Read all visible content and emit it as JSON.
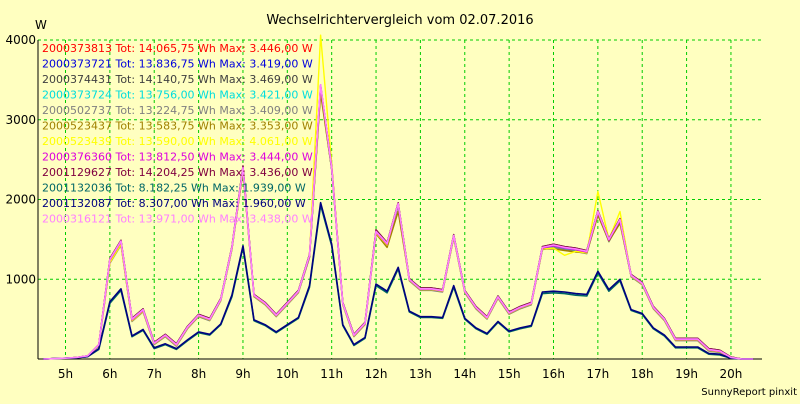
{
  "chart_data": {
    "type": "line",
    "title": "Wechselrichtervergleich vom 02.07.2016",
    "ylabel": "W",
    "xlabel": "",
    "footer": "SunnyReport pinxit",
    "ylim": [
      0,
      4000
    ],
    "xlim": [
      4.38,
      20.7
    ],
    "yticks": [
      1000,
      2000,
      3000,
      4000
    ],
    "xticks": [
      {
        "value": 5,
        "label": "5h"
      },
      {
        "value": 6,
        "label": "6h"
      },
      {
        "value": 7,
        "label": "7h"
      },
      {
        "value": 8,
        "label": "8h"
      },
      {
        "value": 9,
        "label": "9h"
      },
      {
        "value": 10,
        "label": "10h"
      },
      {
        "value": 11,
        "label": "11h"
      },
      {
        "value": 12,
        "label": "12h"
      },
      {
        "value": 13,
        "label": "13h"
      },
      {
        "value": 14,
        "label": "14h"
      },
      {
        "value": 15,
        "label": "15h"
      },
      {
        "value": 16,
        "label": "16h"
      },
      {
        "value": 17,
        "label": "17h"
      },
      {
        "value": 18,
        "label": "18h"
      },
      {
        "value": 19,
        "label": "19h"
      },
      {
        "value": 20,
        "label": "20h"
      }
    ],
    "grid": true,
    "legend_position": "top-left",
    "colors": {
      "background": "#ffffc0",
      "grid": "#00cc00",
      "axis": "#000000"
    },
    "x": [
      4.5,
      5.0,
      5.25,
      5.5,
      5.75,
      6.0,
      6.25,
      6.5,
      6.75,
      7.0,
      7.25,
      7.5,
      7.75,
      8.0,
      8.25,
      8.5,
      8.75,
      9.0,
      9.25,
      9.5,
      9.75,
      10.0,
      10.25,
      10.5,
      10.75,
      11.0,
      11.25,
      11.5,
      11.75,
      12.0,
      12.25,
      12.5,
      12.75,
      13.0,
      13.25,
      13.5,
      13.75,
      14.0,
      14.25,
      14.5,
      14.75,
      15.0,
      15.25,
      15.5,
      15.75,
      16.0,
      16.25,
      16.5,
      16.75,
      17.0,
      17.25,
      17.5,
      17.75,
      18.0,
      18.25,
      18.5,
      18.75,
      19.0,
      19.25,
      19.5,
      19.75,
      20.0,
      20.25,
      20.5
    ],
    "series": [
      {
        "name": "2000373813 Tot: 14.065,75 Wh Max: 3.446,00 W",
        "color": "#ff0000",
        "values": [
          0,
          10,
          20,
          40,
          180,
          1250,
          1480,
          500,
          620,
          200,
          300,
          180,
          400,
          550,
          500,
          750,
          1400,
          2400,
          800,
          700,
          550,
          700,
          850,
          1300,
          3400,
          2400,
          700,
          300,
          450,
          1600,
          1450,
          1950,
          1000,
          880,
          880,
          860,
          1550,
          850,
          650,
          520,
          780,
          580,
          650,
          700,
          1400,
          1430,
          1400,
          1380,
          1350,
          1850,
          1500,
          1750,
          1050,
          950,
          650,
          500,
          250,
          250,
          250,
          120,
          100,
          20,
          0,
          0
        ]
      },
      {
        "name": "2000373721 Tot: 13.836,75 Wh Max: 3.419,00 W",
        "color": "#0000dd",
        "values": [
          0,
          10,
          20,
          40,
          170,
          1230,
          1460,
          480,
          600,
          190,
          290,
          170,
          390,
          540,
          490,
          740,
          1380,
          2380,
          790,
          690,
          540,
          690,
          840,
          1280,
          3380,
          2380,
          690,
          290,
          440,
          1580,
          1430,
          1930,
          990,
          870,
          870,
          850,
          1530,
          840,
          640,
          510,
          770,
          570,
          640,
          690,
          1380,
          1410,
          1380,
          1360,
          1330,
          1830,
          1480,
          1730,
          1040,
          940,
          640,
          490,
          240,
          240,
          240,
          110,
          90,
          15,
          0,
          0
        ]
      },
      {
        "name": "2000374431 Tot: 14.140,75 Wh Max: 3.469,00 W",
        "color": "#404040",
        "values": [
          0,
          10,
          20,
          40,
          180,
          1260,
          1490,
          510,
          630,
          210,
          310,
          190,
          410,
          560,
          510,
          760,
          1410,
          2420,
          810,
          710,
          560,
          710,
          860,
          1310,
          3420,
          2420,
          710,
          310,
          460,
          1620,
          1460,
          1960,
          1010,
          890,
          890,
          870,
          1560,
          860,
          660,
          530,
          790,
          590,
          660,
          710,
          1410,
          1440,
          1410,
          1390,
          1360,
          1860,
          1510,
          1760,
          1060,
          960,
          660,
          510,
          260,
          260,
          260,
          130,
          110,
          25,
          0,
          0
        ]
      },
      {
        "name": "2000373724 Tot: 13.756,00 Wh Max: 3.421,00 W",
        "color": "#00dddd",
        "values": [
          0,
          10,
          20,
          40,
          170,
          1220,
          1450,
          480,
          600,
          190,
          290,
          170,
          390,
          540,
          490,
          740,
          1380,
          2380,
          790,
          690,
          540,
          690,
          840,
          1280,
          3380,
          2380,
          690,
          290,
          440,
          1580,
          1430,
          1930,
          990,
          870,
          870,
          850,
          1530,
          840,
          640,
          510,
          770,
          570,
          640,
          690,
          1380,
          1410,
          1380,
          1360,
          1330,
          1830,
          1480,
          1730,
          1040,
          940,
          640,
          490,
          240,
          240,
          240,
          110,
          90,
          15,
          0,
          0
        ]
      },
      {
        "name": "2000502737 Tot: 13.224,75 Wh Max: 3.409,00 W",
        "color": "#808080",
        "values": [
          0,
          10,
          20,
          40,
          160,
          1200,
          1430,
          470,
          590,
          180,
          280,
          160,
          380,
          530,
          480,
          730,
          1370,
          2360,
          780,
          680,
          530,
          680,
          830,
          1270,
          3370,
          2370,
          680,
          280,
          430,
          1570,
          1420,
          1920,
          980,
          860,
          860,
          840,
          1520,
          830,
          630,
          500,
          760,
          560,
          630,
          680,
          1370,
          1400,
          1370,
          1350,
          1320,
          1820,
          1470,
          1720,
          1030,
          930,
          630,
          480,
          230,
          230,
          230,
          100,
          80,
          10,
          0,
          0
        ]
      },
      {
        "name": "2000523437 Tot: 13.583,75 Wh Max: 3.353,00 W",
        "color": "#a08000",
        "values": [
          0,
          10,
          20,
          40,
          170,
          1210,
          1440,
          480,
          600,
          190,
          290,
          170,
          390,
          540,
          490,
          740,
          1380,
          2350,
          790,
          690,
          540,
          690,
          840,
          1280,
          3330,
          2380,
          690,
          290,
          440,
          1570,
          1400,
          1850,
          990,
          870,
          870,
          850,
          1530,
          840,
          640,
          510,
          770,
          570,
          640,
          690,
          1380,
          1380,
          1360,
          1340,
          1330,
          1800,
          1480,
          1700,
          1040,
          940,
          640,
          490,
          240,
          240,
          240,
          110,
          90,
          15,
          0,
          0
        ]
      },
      {
        "name": "2000523439 Tot: 13.590,00 Wh Max: 4.061,00 W",
        "color": "#ffff00",
        "values": [
          0,
          10,
          20,
          40,
          170,
          1210,
          1440,
          480,
          600,
          190,
          290,
          170,
          390,
          540,
          490,
          740,
          1380,
          2380,
          790,
          690,
          540,
          690,
          840,
          1300,
          4060,
          2450,
          690,
          290,
          440,
          1580,
          1430,
          1950,
          990,
          870,
          870,
          850,
          1530,
          840,
          640,
          510,
          770,
          570,
          640,
          690,
          1380,
          1390,
          1300,
          1350,
          1330,
          2100,
          1500,
          1850,
          1040,
          940,
          640,
          490,
          240,
          240,
          240,
          110,
          90,
          15,
          0,
          0
        ]
      },
      {
        "name": "2000376360 Tot: 13.812,50 Wh Max: 3.444,00 W",
        "color": "#dd00dd",
        "values": [
          0,
          10,
          20,
          40,
          175,
          1240,
          1470,
          490,
          610,
          195,
          295,
          175,
          395,
          545,
          495,
          745,
          1390,
          2390,
          795,
          695,
          545,
          695,
          845,
          1290,
          3440,
          2390,
          695,
          295,
          445,
          1590,
          1440,
          1940,
          995,
          875,
          875,
          855,
          1540,
          845,
          645,
          515,
          775,
          575,
          645,
          695,
          1390,
          1420,
          1390,
          1370,
          1340,
          1840,
          1490,
          1740,
          1045,
          945,
          645,
          495,
          245,
          245,
          245,
          115,
          95,
          18,
          0,
          0
        ]
      },
      {
        "name": "2001129627 Tot: 14.204,25 Wh Max: 3.436,00 W",
        "color": "#800040",
        "values": [
          0,
          10,
          20,
          40,
          180,
          1260,
          1490,
          510,
          630,
          210,
          310,
          190,
          410,
          560,
          510,
          760,
          1410,
          2420,
          810,
          710,
          560,
          710,
          860,
          1310,
          3430,
          2420,
          710,
          310,
          460,
          1620,
          1460,
          1960,
          1010,
          890,
          890,
          870,
          1560,
          860,
          660,
          530,
          790,
          590,
          660,
          710,
          1410,
          1440,
          1410,
          1390,
          1360,
          1860,
          1510,
          1760,
          1060,
          960,
          660,
          510,
          260,
          260,
          260,
          130,
          110,
          25,
          0,
          0
        ]
      },
      {
        "name": "2001132036 Tot: 8.182,25 Wh Max: 1.939,00 W",
        "color": "#006666",
        "values": [
          0,
          10,
          15,
          30,
          120,
          700,
          860,
          280,
          360,
          130,
          180,
          120,
          230,
          330,
          300,
          430,
          780,
          1400,
          480,
          420,
          330,
          420,
          510,
          900,
          1930,
          1420,
          420,
          170,
          260,
          920,
          830,
          1130,
          590,
          520,
          520,
          510,
          900,
          500,
          380,
          310,
          460,
          340,
          380,
          410,
          820,
          830,
          820,
          800,
          790,
          1080,
          850,
          980,
          610,
          560,
          380,
          290,
          140,
          140,
          140,
          60,
          50,
          10,
          0,
          0
        ]
      },
      {
        "name": "2001132087 Tot: 8.307,00 Wh Max: 1.960,00 W",
        "color": "#000080",
        "values": [
          0,
          10,
          15,
          30,
          130,
          720,
          880,
          290,
          370,
          140,
          190,
          130,
          240,
          340,
          310,
          440,
          800,
          1420,
          490,
          430,
          340,
          430,
          520,
          920,
          1960,
          1440,
          430,
          180,
          270,
          940,
          850,
          1150,
          600,
          530,
          530,
          520,
          920,
          510,
          390,
          320,
          470,
          350,
          390,
          420,
          840,
          850,
          840,
          820,
          810,
          1100,
          870,
          1000,
          620,
          570,
          390,
          300,
          150,
          150,
          150,
          70,
          60,
          10,
          0,
          0
        ]
      },
      {
        "name": "2000316121 Tot: 13.971,00 Wh Max: 3.438,00 W",
        "color": "#ff80ff",
        "values": [
          0,
          10,
          20,
          40,
          178,
          1250,
          1480,
          500,
          620,
          200,
          300,
          180,
          400,
          550,
          500,
          750,
          1400,
          2400,
          800,
          700,
          550,
          700,
          850,
          1300,
          3438,
          2400,
          700,
          300,
          450,
          1600,
          1450,
          1950,
          1000,
          880,
          880,
          860,
          1550,
          850,
          650,
          520,
          780,
          580,
          650,
          700,
          1400,
          1430,
          1400,
          1380,
          1350,
          1850,
          1500,
          1750,
          1050,
          950,
          650,
          500,
          250,
          250,
          250,
          120,
          100,
          20,
          0,
          0
        ]
      }
    ]
  }
}
